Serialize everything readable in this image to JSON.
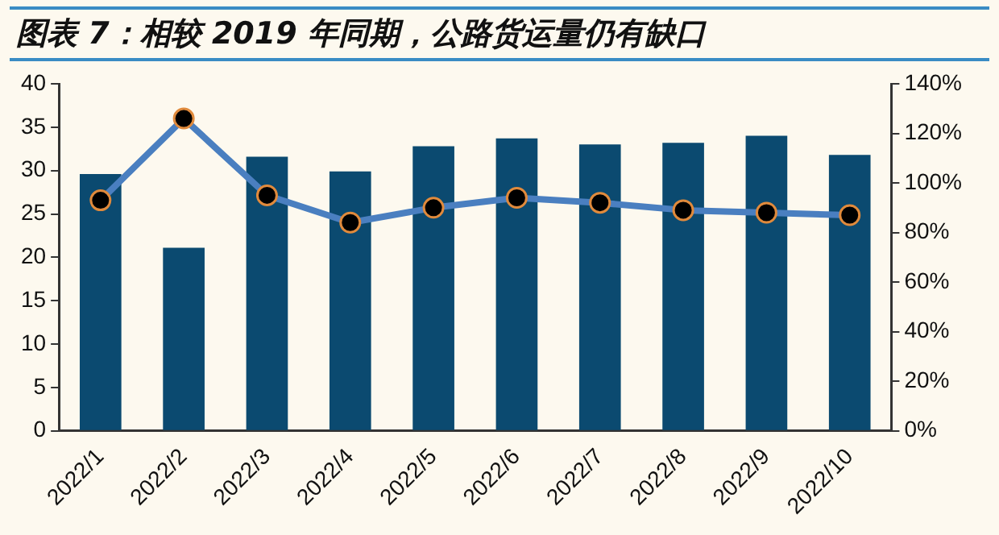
{
  "chart_data": {
    "type": "bar",
    "title": "图表 7：相较 2019 年同期，公路货运量仍有缺口",
    "categories": [
      "2022/1",
      "2022/2",
      "2022/3",
      "2022/4",
      "2022/5",
      "2022/6",
      "2022/7",
      "2022/8",
      "2022/9",
      "2022/10"
    ],
    "series": [
      {
        "color": "#0b4a70",
        "values": [
          29.6,
          21.1,
          31.6,
          29.9,
          32.8,
          33.7,
          33.0,
          33.2,
          34.0,
          31.8
        ]
      },
      {
        "type": "line",
        "axis": "y2",
        "color": "#4a7fc0",
        "marker": "circle",
        "values": [
          93,
          126,
          95,
          84,
          90,
          94,
          92,
          89,
          88,
          87
        ]
      }
    ],
    "ylim": [
      0,
      40
    ],
    "yticks": [
      0,
      5,
      10,
      15,
      20,
      25,
      30,
      35,
      40
    ],
    "y2lim": [
      0,
      140
    ],
    "y2ticks": [
      {
        "value": 0,
        "label": "0%"
      },
      {
        "value": 20,
        "label": "20%"
      },
      {
        "value": 40,
        "label": "40%"
      },
      {
        "value": 60,
        "label": "60%"
      },
      {
        "value": 80,
        "label": "80%"
      },
      {
        "value": 100,
        "label": "100%"
      },
      {
        "value": 120,
        "label": "120%"
      },
      {
        "value": 140,
        "label": "140%"
      }
    ],
    "grid": false,
    "legend": false
  }
}
